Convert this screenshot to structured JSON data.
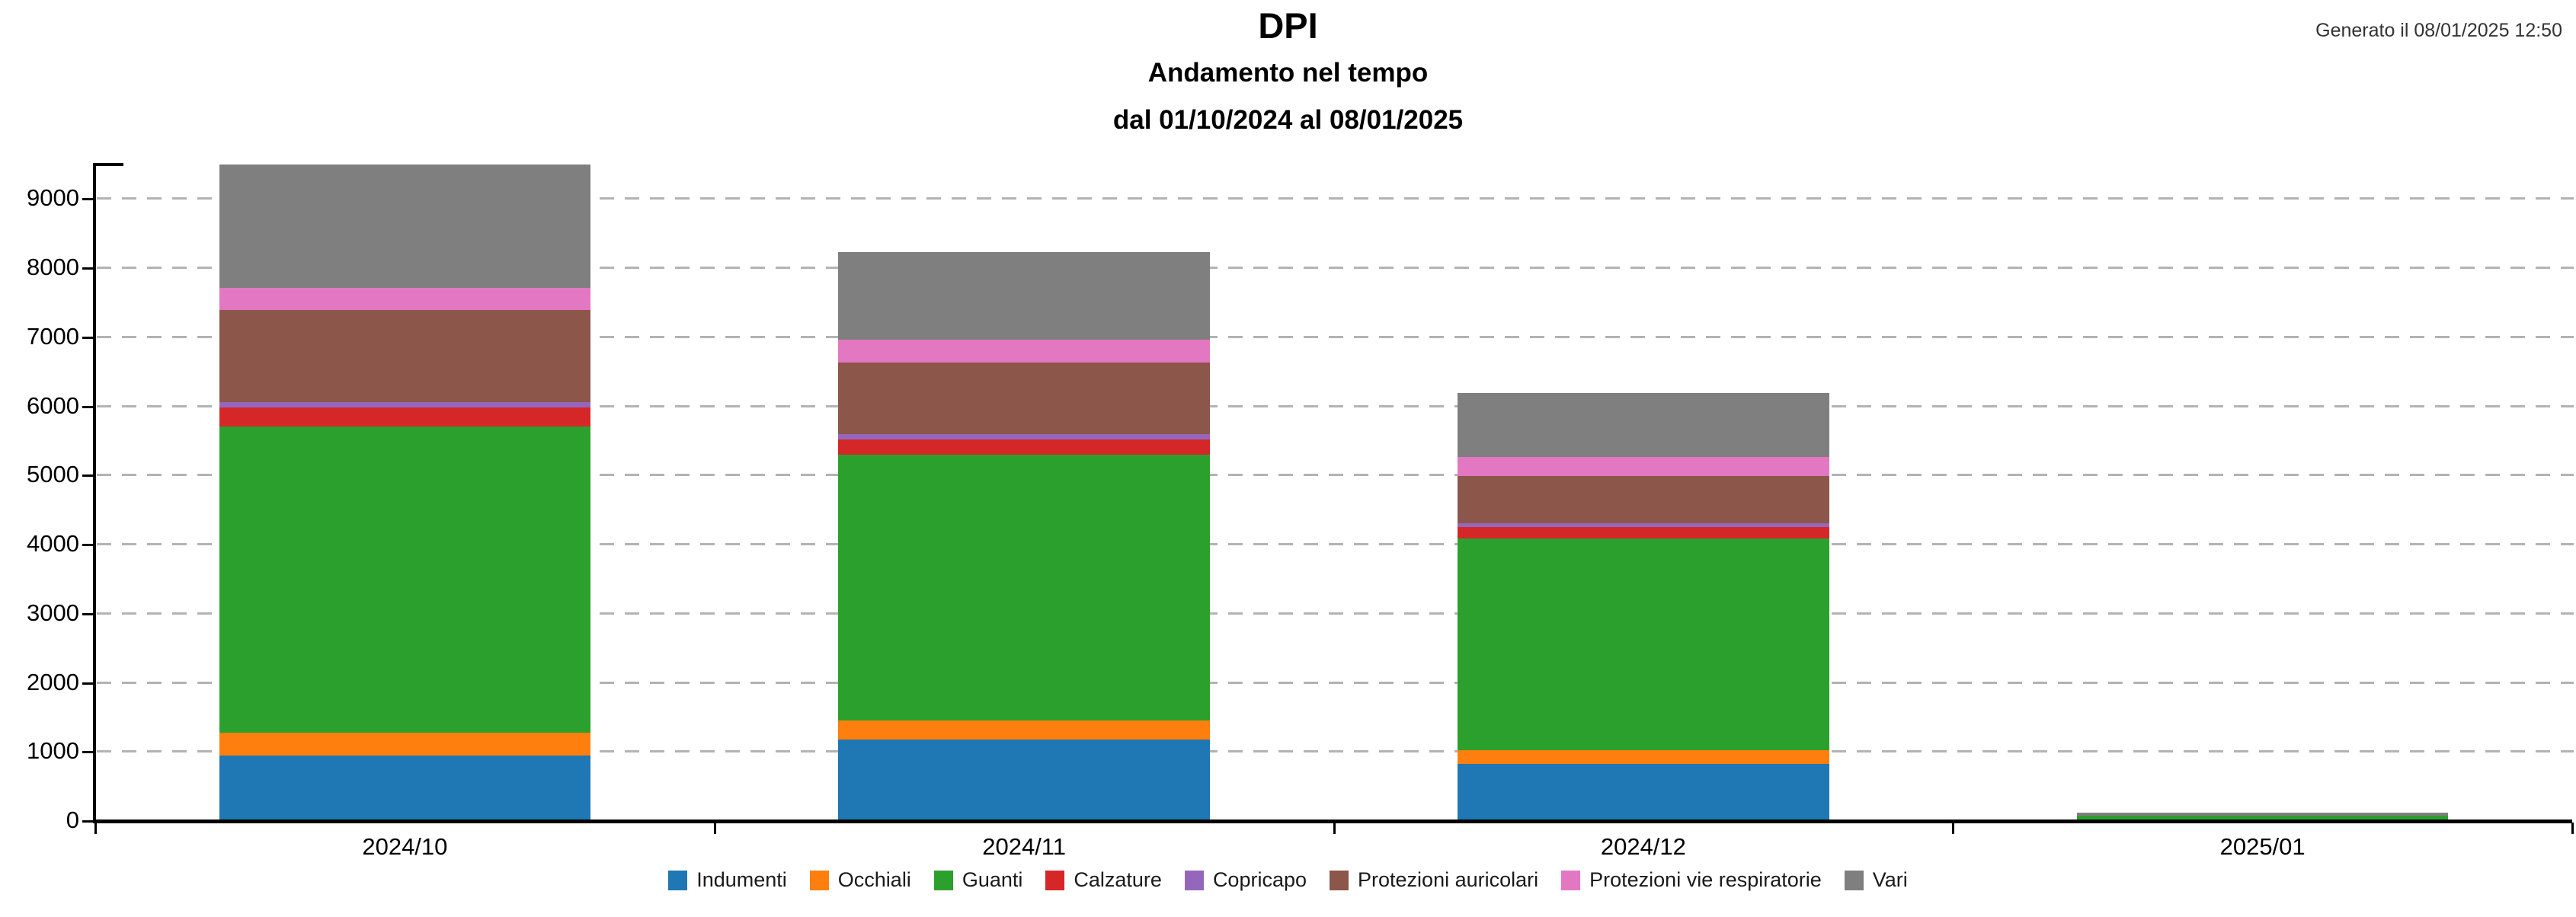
{
  "header": {
    "generated_label": "Generato il 08/01/2025 12:50"
  },
  "chart_data": {
    "type": "bar",
    "stacked": true,
    "title": "DPI",
    "subtitle": "Andamento nel tempo",
    "date_range": "dal 01/10/2024 al 08/01/2025",
    "xlabel": "",
    "ylabel": "",
    "categories": [
      "2024/10",
      "2024/11",
      "2024/12",
      "2025/01"
    ],
    "series": [
      {
        "name": "Indumenti",
        "color": "#1f77b4",
        "values": [
          950,
          1180,
          830,
          0
        ]
      },
      {
        "name": "Occhiali",
        "color": "#ff7f0e",
        "values": [
          330,
          280,
          200,
          0
        ]
      },
      {
        "name": "Guanti",
        "color": "#2ca02c",
        "values": [
          4430,
          3840,
          3060,
          80
        ]
      },
      {
        "name": "Calzature",
        "color": "#d62728",
        "values": [
          270,
          220,
          160,
          0
        ]
      },
      {
        "name": "Copricapo",
        "color": "#9467bd",
        "values": [
          80,
          80,
          60,
          0
        ]
      },
      {
        "name": "Protezioni auricolari",
        "color": "#8c564b",
        "values": [
          1330,
          1030,
          680,
          0
        ]
      },
      {
        "name": "Protezioni vie respiratorie",
        "color": "#e377c2",
        "values": [
          330,
          330,
          280,
          0
        ]
      },
      {
        "name": "Vari",
        "color": "#7f7f7f",
        "values": [
          1780,
          1270,
          920,
          40
        ]
      }
    ],
    "totals": [
      9500,
      8230,
      6190,
      120
    ],
    "y_ticks": [
      0,
      1000,
      2000,
      3000,
      4000,
      5000,
      6000,
      7000,
      8000,
      9000
    ],
    "ylim": [
      0,
      9500
    ],
    "grid": "horizontal-dashed",
    "grid_color": "#b3b3b3",
    "axis_color": "#000000",
    "legend_position": "bottom",
    "bar_width_fraction": 0.6
  }
}
